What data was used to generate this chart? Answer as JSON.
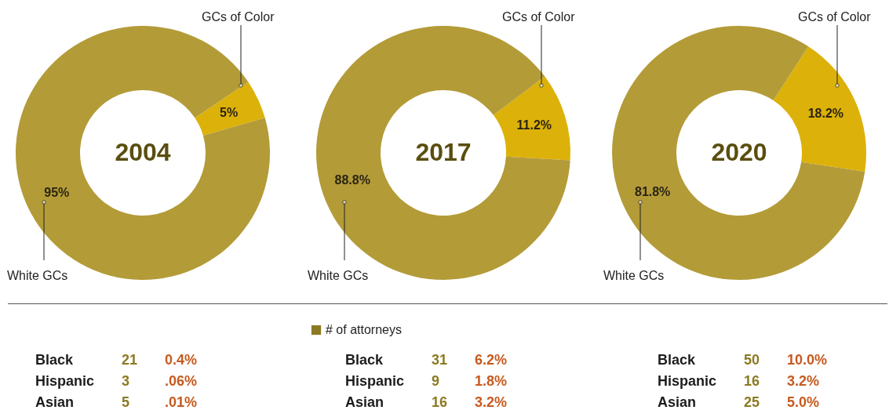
{
  "chart_data": [
    {
      "type": "donut",
      "title": "2004",
      "categories": [
        "GCs of Color",
        "White GCs"
      ],
      "values": [
        5,
        95
      ],
      "colors": [
        "#dcb10a",
        "#b39b38"
      ],
      "value_labels": [
        "5%",
        "95%"
      ]
    },
    {
      "type": "donut",
      "title": "2017",
      "categories": [
        "GCs of Color",
        "White GCs"
      ],
      "values": [
        11.2,
        88.8
      ],
      "colors": [
        "#dcb10a",
        "#b39b38"
      ],
      "value_labels": [
        "11.2%",
        "88.8%"
      ]
    },
    {
      "type": "donut",
      "title": "2020",
      "categories": [
        "GCs of Color",
        "White GCs"
      ],
      "values": [
        18.2,
        81.8
      ],
      "colors": [
        "#dcb10a",
        "#b39b38"
      ],
      "value_labels": [
        "18.2%",
        "81.8%"
      ]
    },
    {
      "type": "other",
      "categories": [
        "Black",
        "Hispanic",
        "Asian"
      ],
      "series": [
        {
          "color": "#8c7a22",
          "values": [
            21,
            3,
            5
          ],
          "value_labels": [
            "21",
            "3",
            "5"
          ]
        },
        {
          "color": "#c65a1e",
          "values": [
            0.4,
            0.06,
            0.01
          ],
          "value_labels": [
            "0.4%",
            ".06%",
            ".01%"
          ]
        }
      ]
    },
    {
      "type": "other",
      "legend": "top",
      "categories": [
        "Black",
        "Hispanic",
        "Asian"
      ],
      "series": [
        {
          "name": "# of attorneys",
          "color": "#8c7a22",
          "values": [
            31,
            9,
            16
          ],
          "value_labels": [
            "31",
            "9",
            "16"
          ]
        },
        {
          "color": "#c65a1e",
          "values": [
            6.2,
            1.8,
            3.2
          ],
          "value_labels": [
            "6.2%",
            "1.8%",
            "3.2%"
          ]
        }
      ]
    },
    {
      "type": "other",
      "categories": [
        "Black",
        "Hispanic",
        "Asian"
      ],
      "series": [
        {
          "color": "#8c7a22",
          "values": [
            50,
            16,
            25
          ],
          "value_labels": [
            "50",
            "16",
            "25"
          ]
        },
        {
          "color": "#c65a1e",
          "values": [
            10.0,
            3.2,
            5.0
          ],
          "value_labels": [
            "10.0%",
            "3.2%",
            "5.0%"
          ]
        }
      ]
    }
  ]
}
